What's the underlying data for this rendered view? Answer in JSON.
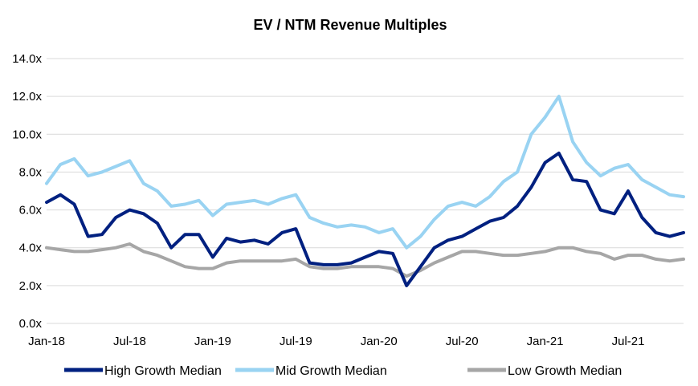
{
  "chart_data": {
    "type": "line",
    "title": "EV / NTM Revenue Multiples",
    "xlabel": "",
    "ylabel": "",
    "ylim": [
      0,
      14
    ],
    "y_ticks": [
      "0.0x",
      "2.0x",
      "4.0x",
      "6.0x",
      "8.0x",
      "10.0x",
      "12.0x",
      "14.0x"
    ],
    "x_ticks": [
      "Jan-18",
      "Jul-18",
      "Jan-19",
      "Jul-19",
      "Jan-20",
      "Jul-20",
      "Jan-21",
      "Jul-21"
    ],
    "x_range": [
      "2018-01",
      "2021-11"
    ],
    "grid": "horizontal",
    "legend_position": "bottom",
    "x": [
      "2018-01",
      "2018-02",
      "2018-03",
      "2018-04",
      "2018-05",
      "2018-06",
      "2018-07",
      "2018-08",
      "2018-09",
      "2018-10",
      "2018-11",
      "2018-12",
      "2019-01",
      "2019-02",
      "2019-03",
      "2019-04",
      "2019-05",
      "2019-06",
      "2019-07",
      "2019-08",
      "2019-09",
      "2019-10",
      "2019-11",
      "2019-12",
      "2020-01",
      "2020-02",
      "2020-03",
      "2020-04",
      "2020-05",
      "2020-06",
      "2020-07",
      "2020-08",
      "2020-09",
      "2020-10",
      "2020-11",
      "2020-12",
      "2021-01",
      "2021-02",
      "2021-03",
      "2021-04",
      "2021-05",
      "2021-06",
      "2021-07",
      "2021-08",
      "2021-09",
      "2021-10",
      "2021-11"
    ],
    "series": [
      {
        "name": "High Growth Median",
        "color": "#002080",
        "values": [
          6.4,
          6.8,
          6.3,
          4.6,
          4.7,
          5.6,
          6.0,
          5.8,
          5.3,
          4.0,
          4.7,
          4.7,
          3.5,
          4.5,
          4.3,
          4.4,
          4.2,
          4.8,
          5.0,
          3.2,
          3.1,
          3.1,
          3.2,
          3.5,
          3.8,
          3.7,
          2.0,
          3.0,
          4.0,
          4.4,
          4.6,
          5.0,
          5.4,
          5.6,
          6.2,
          7.2,
          8.5,
          9.0,
          7.6,
          7.5,
          6.0,
          5.8,
          7.0,
          5.6,
          4.8,
          4.6,
          4.8
        ]
      },
      {
        "name": "Mid Growth Median",
        "color": "#99d3f2",
        "values": [
          7.4,
          8.4,
          8.7,
          7.8,
          8.0,
          8.3,
          8.6,
          7.4,
          7.0,
          6.2,
          6.3,
          6.5,
          5.7,
          6.3,
          6.4,
          6.5,
          6.3,
          6.6,
          6.8,
          5.6,
          5.3,
          5.1,
          5.2,
          5.1,
          4.8,
          5.0,
          4.0,
          4.6,
          5.5,
          6.2,
          6.4,
          6.2,
          6.7,
          7.5,
          8.0,
          10.0,
          10.9,
          12.0,
          9.6,
          8.5,
          7.8,
          8.2,
          8.4,
          7.6,
          7.2,
          6.8,
          6.7
        ]
      },
      {
        "name": "Low Growth Median",
        "color": "#a6a6a6",
        "values": [
          4.0,
          3.9,
          3.8,
          3.8,
          3.9,
          4.0,
          4.2,
          3.8,
          3.6,
          3.3,
          3.0,
          2.9,
          2.9,
          3.2,
          3.3,
          3.3,
          3.3,
          3.3,
          3.4,
          3.0,
          2.9,
          2.9,
          3.0,
          3.0,
          3.0,
          2.9,
          2.5,
          2.8,
          3.2,
          3.5,
          3.8,
          3.8,
          3.7,
          3.6,
          3.6,
          3.7,
          3.8,
          4.0,
          4.0,
          3.8,
          3.7,
          3.4,
          3.6,
          3.6,
          3.4,
          3.3,
          3.4
        ]
      }
    ]
  }
}
